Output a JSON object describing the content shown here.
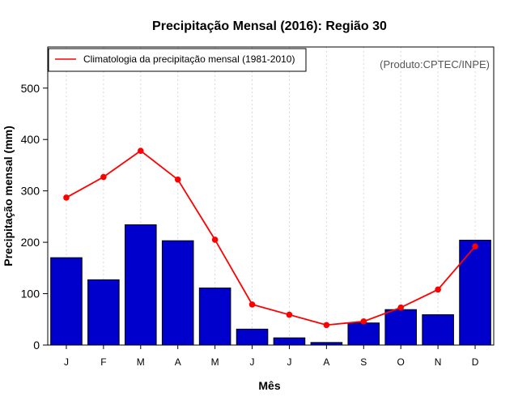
{
  "chart_data": {
    "type": "bar",
    "title": "Precipitação Mensal (2016): Região 30",
    "xlabel": "Mês",
    "ylabel": "Precipitação mensal (mm)",
    "ylim": [
      0,
      580
    ],
    "yticks": [
      0,
      100,
      200,
      300,
      400,
      500
    ],
    "categories": [
      "J",
      "F",
      "M",
      "A",
      "M",
      "J",
      "J",
      "A",
      "S",
      "O",
      "N",
      "D"
    ],
    "series": [
      {
        "name": "Precipitação mensal 2016",
        "kind": "bar",
        "color": "#0000CC",
        "values": [
          170,
          127,
          234,
          203,
          111,
          31,
          14,
          5,
          43,
          69,
          59,
          204
        ]
      },
      {
        "name": "Climatologia da precipitação mensal (1981-2010)",
        "kind": "line",
        "color": "#FF0000",
        "values": [
          287,
          327,
          378,
          322,
          205,
          79,
          59,
          39,
          46,
          73,
          108,
          192
        ]
      }
    ],
    "legend": {
      "placement": "top-left",
      "entries": [
        "Climatologia da precipitação mensal (1981-2010)"
      ]
    },
    "annotation": "(Produto:CPTEC/INPE)",
    "grid": "vertical dotted"
  }
}
